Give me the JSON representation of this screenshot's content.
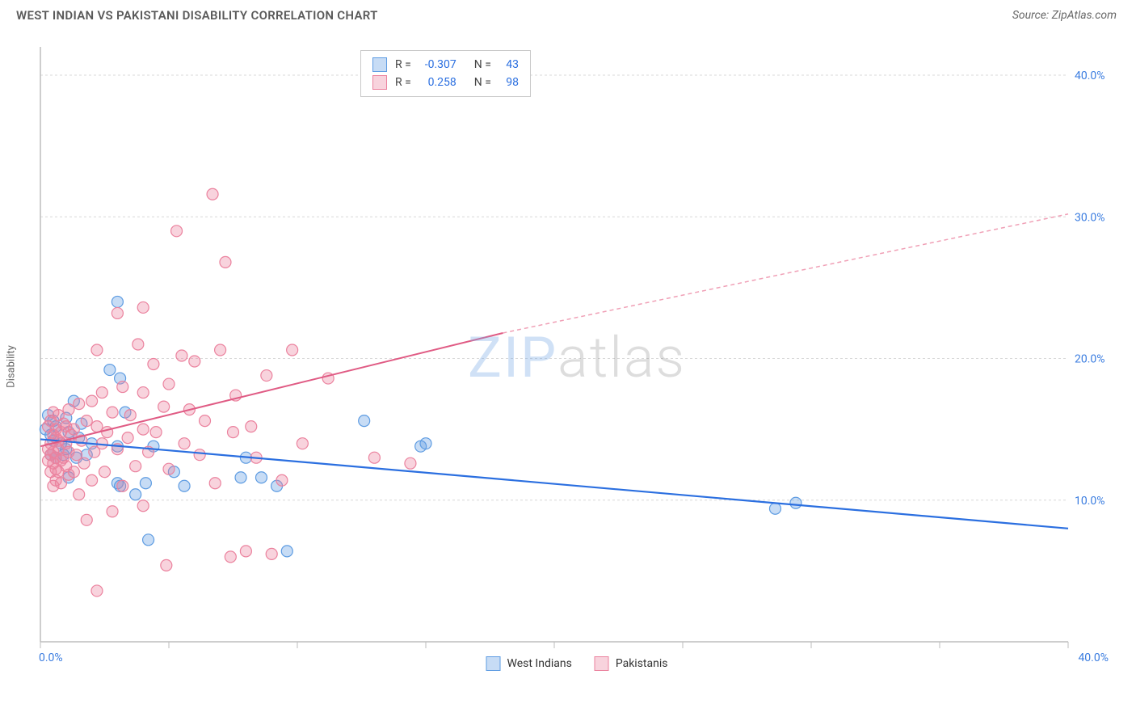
{
  "header": {
    "title": "WEST INDIAN VS PAKISTANI DISABILITY CORRELATION CHART",
    "source": "Source: ZipAtlas.com"
  },
  "watermark": {
    "zip": "ZIP",
    "atlas": "atlas"
  },
  "y_axis_label": "Disability",
  "chart": {
    "type": "scatter",
    "xlim": [
      0,
      40
    ],
    "ylim": [
      0,
      42
    ],
    "x_ticks": [
      0,
      5,
      10,
      15,
      20,
      25,
      30,
      35,
      40
    ],
    "x_tick_labels": [
      "0.0%",
      "",
      "",
      "",
      "",
      "",
      "",
      "",
      "40.0%"
    ],
    "y_gridlines": [
      10,
      20,
      30,
      40
    ],
    "y_tick_labels": [
      "10.0%",
      "20.0%",
      "30.0%",
      "40.0%"
    ],
    "background_color": "#ffffff",
    "grid_color": "#d8d8d8",
    "axis_color": "#bdbdbd",
    "label_color": "#3b7de0",
    "marker_radius": 7,
    "marker_opacity": 0.45,
    "series": [
      {
        "name": "West Indians",
        "color": "#5e9ce2",
        "fill": "rgba(94,156,226,0.35)",
        "R": "-0.307",
        "N": "43",
        "trend": {
          "x1": 0,
          "y1": 14.3,
          "x2": 40,
          "y2": 8.0,
          "color": "#2b6fe0",
          "width": 2.2,
          "dash": "none"
        },
        "points": [
          [
            0.2,
            15.0
          ],
          [
            0.3,
            16.0
          ],
          [
            0.4,
            13.2
          ],
          [
            0.4,
            14.6
          ],
          [
            0.5,
            14.2
          ],
          [
            0.5,
            15.6
          ],
          [
            0.6,
            13.0
          ],
          [
            0.6,
            15.2
          ],
          [
            0.8,
            14.0
          ],
          [
            0.9,
            13.2
          ],
          [
            1.0,
            15.8
          ],
          [
            1.0,
            13.6
          ],
          [
            1.1,
            14.8
          ],
          [
            1.1,
            11.6
          ],
          [
            1.3,
            17.0
          ],
          [
            1.4,
            13.0
          ],
          [
            1.5,
            14.4
          ],
          [
            1.6,
            15.4
          ],
          [
            1.8,
            13.2
          ],
          [
            2.0,
            14.0
          ],
          [
            2.7,
            19.2
          ],
          [
            3.0,
            24.0
          ],
          [
            3.0,
            11.2
          ],
          [
            3.0,
            13.8
          ],
          [
            3.1,
            11.0
          ],
          [
            3.1,
            18.6
          ],
          [
            3.3,
            16.2
          ],
          [
            3.7,
            10.4
          ],
          [
            4.1,
            11.2
          ],
          [
            4.2,
            7.2
          ],
          [
            4.4,
            13.8
          ],
          [
            5.2,
            12.0
          ],
          [
            5.6,
            11.0
          ],
          [
            7.8,
            11.6
          ],
          [
            8.0,
            13.0
          ],
          [
            8.6,
            11.6
          ],
          [
            9.2,
            11.0
          ],
          [
            9.6,
            6.4
          ],
          [
            12.6,
            15.6
          ],
          [
            14.8,
            13.8
          ],
          [
            15.0,
            14.0
          ],
          [
            28.6,
            9.4
          ],
          [
            29.4,
            9.8
          ]
        ]
      },
      {
        "name": "Pakistanis",
        "color": "#eb829e",
        "fill": "rgba(235,130,158,0.35)",
        "R": "0.258",
        "N": "98",
        "trend_solid": {
          "x1": 0,
          "y1": 13.8,
          "x2": 18,
          "y2": 21.8,
          "color": "#e05b84",
          "width": 2,
          "dash": "none"
        },
        "trend_dash": {
          "x1": 18,
          "y1": 21.8,
          "x2": 40,
          "y2": 30.2,
          "color": "#f0a0b6",
          "width": 1.5,
          "dash": "5 4"
        },
        "points": [
          [
            0.3,
            12.8
          ],
          [
            0.3,
            13.6
          ],
          [
            0.3,
            15.2
          ],
          [
            0.4,
            12.0
          ],
          [
            0.4,
            13.2
          ],
          [
            0.4,
            14.0
          ],
          [
            0.4,
            15.6
          ],
          [
            0.5,
            11.0
          ],
          [
            0.5,
            12.6
          ],
          [
            0.5,
            13.4
          ],
          [
            0.5,
            14.6
          ],
          [
            0.5,
            16.2
          ],
          [
            0.6,
            11.4
          ],
          [
            0.6,
            12.2
          ],
          [
            0.6,
            13.0
          ],
          [
            0.6,
            14.4
          ],
          [
            0.6,
            15.0
          ],
          [
            0.7,
            12.0
          ],
          [
            0.7,
            13.6
          ],
          [
            0.7,
            14.2
          ],
          [
            0.7,
            16.0
          ],
          [
            0.8,
            11.2
          ],
          [
            0.8,
            12.8
          ],
          [
            0.8,
            14.8
          ],
          [
            0.9,
            13.0
          ],
          [
            0.9,
            15.4
          ],
          [
            1.0,
            12.4
          ],
          [
            1.0,
            14.0
          ],
          [
            1.0,
            15.2
          ],
          [
            1.1,
            11.8
          ],
          [
            1.1,
            13.4
          ],
          [
            1.1,
            16.4
          ],
          [
            1.2,
            14.6
          ],
          [
            1.3,
            12.0
          ],
          [
            1.3,
            15.0
          ],
          [
            1.4,
            13.2
          ],
          [
            1.5,
            16.8
          ],
          [
            1.5,
            10.4
          ],
          [
            1.6,
            14.2
          ],
          [
            1.7,
            12.6
          ],
          [
            1.8,
            15.6
          ],
          [
            1.8,
            8.6
          ],
          [
            2.0,
            11.4
          ],
          [
            2.0,
            17.0
          ],
          [
            2.1,
            13.4
          ],
          [
            2.2,
            20.6
          ],
          [
            2.2,
            15.2
          ],
          [
            2.2,
            3.6
          ],
          [
            2.4,
            14.0
          ],
          [
            2.4,
            17.6
          ],
          [
            2.5,
            12.0
          ],
          [
            2.6,
            14.8
          ],
          [
            2.8,
            16.2
          ],
          [
            2.8,
            9.2
          ],
          [
            3.0,
            23.2
          ],
          [
            3.0,
            13.6
          ],
          [
            3.2,
            18.0
          ],
          [
            3.2,
            11.0
          ],
          [
            3.4,
            14.4
          ],
          [
            3.5,
            16.0
          ],
          [
            3.7,
            12.4
          ],
          [
            3.8,
            21.0
          ],
          [
            4.0,
            15.0
          ],
          [
            4.0,
            23.6
          ],
          [
            4.0,
            17.6
          ],
          [
            4.0,
            9.6
          ],
          [
            4.2,
            13.4
          ],
          [
            4.4,
            19.6
          ],
          [
            4.5,
            14.8
          ],
          [
            4.8,
            16.6
          ],
          [
            4.9,
            5.4
          ],
          [
            5.0,
            18.2
          ],
          [
            5.0,
            12.2
          ],
          [
            5.3,
            29.0
          ],
          [
            5.5,
            20.2
          ],
          [
            5.6,
            14.0
          ],
          [
            5.8,
            16.4
          ],
          [
            6.0,
            19.8
          ],
          [
            6.2,
            13.2
          ],
          [
            6.4,
            15.6
          ],
          [
            6.7,
            31.6
          ],
          [
            6.8,
            11.2
          ],
          [
            7.0,
            20.6
          ],
          [
            7.2,
            26.8
          ],
          [
            7.4,
            6.0
          ],
          [
            7.5,
            14.8
          ],
          [
            7.6,
            17.4
          ],
          [
            8.0,
            6.4
          ],
          [
            8.2,
            15.2
          ],
          [
            8.4,
            13.0
          ],
          [
            8.8,
            18.8
          ],
          [
            9.0,
            6.2
          ],
          [
            9.4,
            11.4
          ],
          [
            9.8,
            20.6
          ],
          [
            10.2,
            14.0
          ],
          [
            11.2,
            18.6
          ],
          [
            13.0,
            13.0
          ],
          [
            14.4,
            12.6
          ]
        ]
      }
    ]
  },
  "top_legend": {
    "rows": [
      {
        "swatch": "blue",
        "R_label": "R =",
        "R": "-0.307",
        "N_label": "N =",
        "N": "43"
      },
      {
        "swatch": "pink",
        "R_label": "R =",
        "R": "0.258",
        "N_label": "N =",
        "N": "98"
      }
    ]
  },
  "bottom_legend": {
    "items": [
      {
        "swatch": "blue",
        "label": "West Indians"
      },
      {
        "swatch": "pink",
        "label": "Pakistanis"
      }
    ]
  }
}
